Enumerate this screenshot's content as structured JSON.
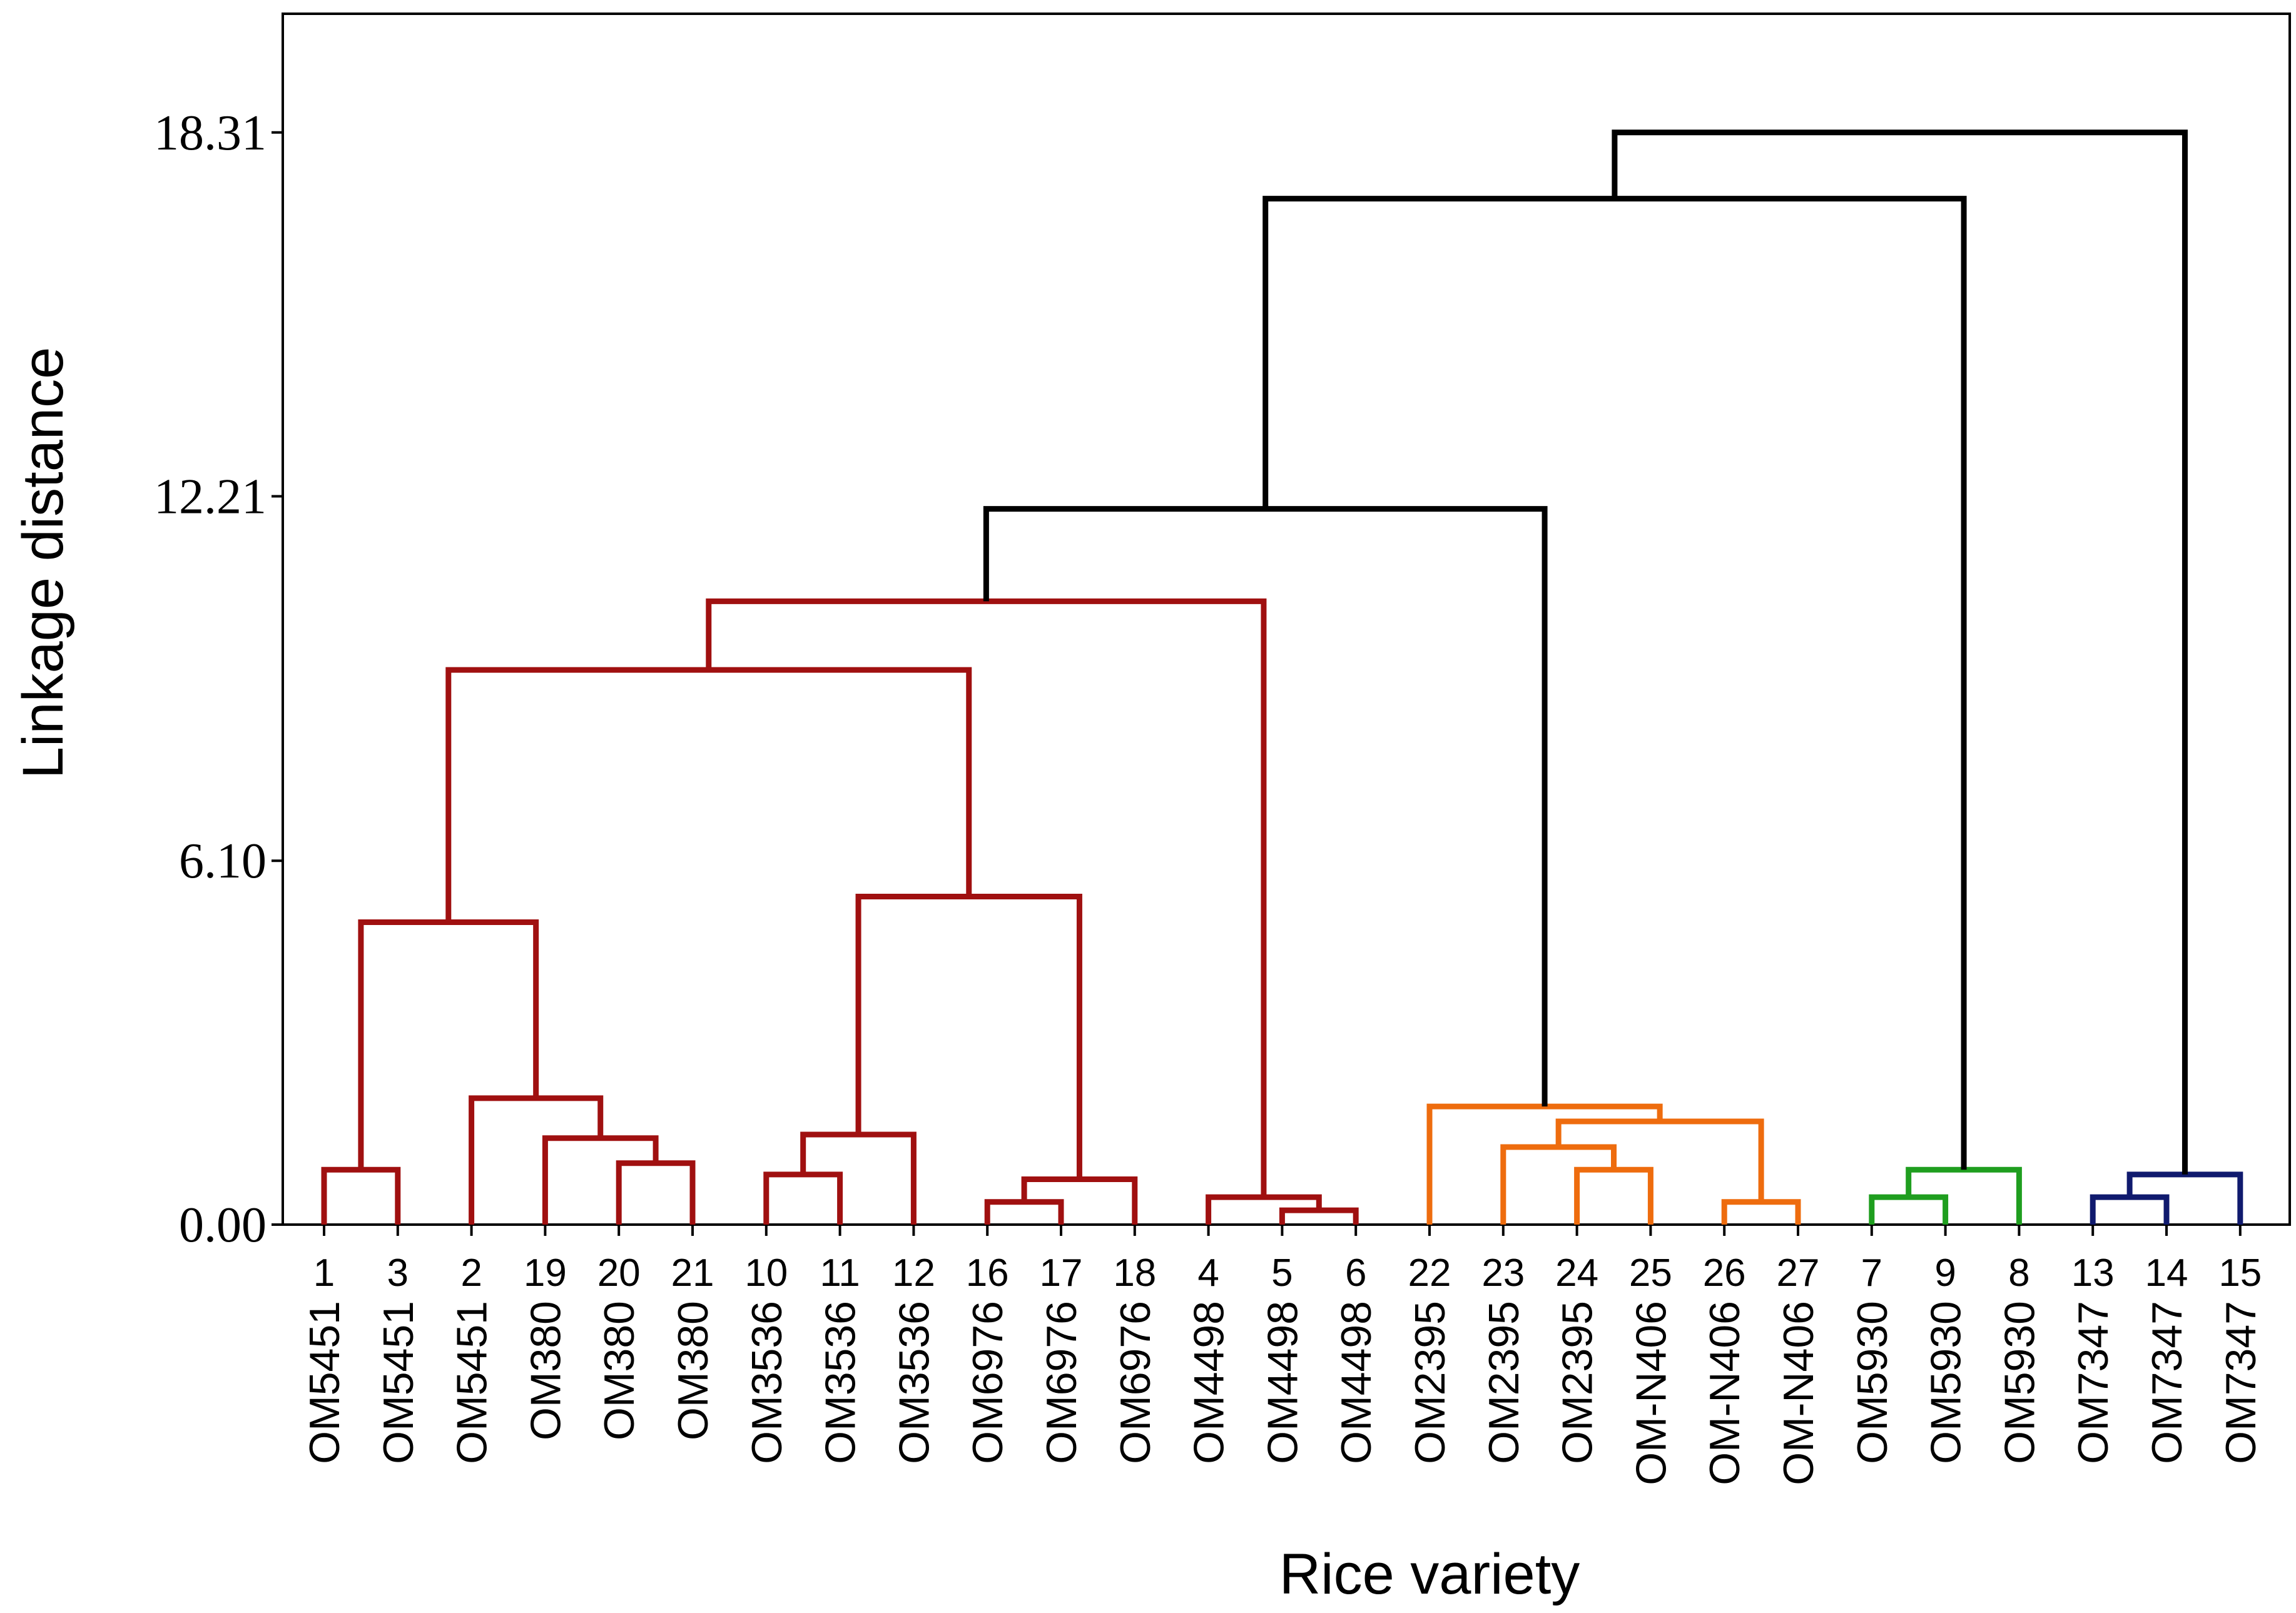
{
  "chart_data": {
    "type": "dendrogram",
    "title": "",
    "xlabel": "Rice variety",
    "ylabel": "Linkage distance",
    "ylim": [
      0,
      20.3
    ],
    "yticks": [
      0.0,
      6.1,
      12.21,
      18.31
    ],
    "ytick_labels": [
      "0.00",
      "6.10",
      "12.21",
      "18.31"
    ],
    "leaves": [
      {
        "id": "1",
        "variety": "OM5451",
        "color": "#a01010"
      },
      {
        "id": "3",
        "variety": "OM5451",
        "color": "#a01010"
      },
      {
        "id": "2",
        "variety": "OM5451",
        "color": "#a01010"
      },
      {
        "id": "19",
        "variety": "OM380",
        "color": "#a01010"
      },
      {
        "id": "20",
        "variety": "OM380",
        "color": "#a01010"
      },
      {
        "id": "21",
        "variety": "OM380",
        "color": "#a01010"
      },
      {
        "id": "10",
        "variety": "OM3536",
        "color": "#a01010"
      },
      {
        "id": "11",
        "variety": "OM3536",
        "color": "#a01010"
      },
      {
        "id": "12",
        "variety": "OM3536",
        "color": "#a01010"
      },
      {
        "id": "16",
        "variety": "OM6976",
        "color": "#a01010"
      },
      {
        "id": "17",
        "variety": "OM6976",
        "color": "#a01010"
      },
      {
        "id": "18",
        "variety": "OM6976",
        "color": "#a01010"
      },
      {
        "id": "4",
        "variety": "OM4498",
        "color": "#a01010"
      },
      {
        "id": "5",
        "variety": "OM4498",
        "color": "#a01010"
      },
      {
        "id": "6",
        "variety": "OM4498",
        "color": "#a01010"
      },
      {
        "id": "22",
        "variety": "OM2395",
        "color": "#ee6c0e"
      },
      {
        "id": "23",
        "variety": "OM2395",
        "color": "#ee6c0e"
      },
      {
        "id": "24",
        "variety": "OM2395",
        "color": "#ee6c0e"
      },
      {
        "id": "25",
        "variety": "OM-N406",
        "color": "#ee6c0e"
      },
      {
        "id": "26",
        "variety": "OM-N406",
        "color": "#ee6c0e"
      },
      {
        "id": "27",
        "variety": "OM-N406",
        "color": "#ee6c0e"
      },
      {
        "id": "7",
        "variety": "OM5930",
        "color": "#1f9e1f"
      },
      {
        "id": "9",
        "variety": "OM5930",
        "color": "#1f9e1f"
      },
      {
        "id": "8",
        "variety": "OM5930",
        "color": "#1f9e1f"
      },
      {
        "id": "13",
        "variety": "OM7347",
        "color": "#101a6e"
      },
      {
        "id": "14",
        "variety": "OM7347",
        "color": "#101a6e"
      },
      {
        "id": "15",
        "variety": "OM7347",
        "color": "#101a6e"
      }
    ],
    "merges": [
      {
        "id": "A",
        "left": 0,
        "right": 1,
        "height": 0.92,
        "color": "#a01010"
      },
      {
        "id": "B",
        "left": 4,
        "right": 5,
        "height": 1.03,
        "color": "#a01010"
      },
      {
        "id": "C",
        "left": 3,
        "right": "B",
        "height": 1.45,
        "color": "#a01010"
      },
      {
        "id": "D",
        "left": 2,
        "right": "C",
        "height": 2.12,
        "color": "#a01010"
      },
      {
        "id": "E",
        "left": "A",
        "right": "D",
        "height": 5.07,
        "color": "#a01010"
      },
      {
        "id": "F",
        "left": 6,
        "right": 7,
        "height": 0.84,
        "color": "#a01010"
      },
      {
        "id": "G",
        "left": "F",
        "right": 8,
        "height": 1.51,
        "color": "#a01010"
      },
      {
        "id": "H",
        "left": 9,
        "right": 10,
        "height": 0.38,
        "color": "#a01010"
      },
      {
        "id": "I",
        "left": "H",
        "right": 11,
        "height": 0.76,
        "color": "#a01010"
      },
      {
        "id": "J",
        "left": "G",
        "right": "I",
        "height": 5.5,
        "color": "#a01010"
      },
      {
        "id": "K",
        "left": "E",
        "right": "J",
        "height": 9.3,
        "color": "#a01010"
      },
      {
        "id": "L",
        "left": 13,
        "right": 14,
        "height": 0.24,
        "color": "#a01010"
      },
      {
        "id": "M",
        "left": 12,
        "right": "L",
        "height": 0.46,
        "color": "#a01010"
      },
      {
        "id": "N",
        "left": "K",
        "right": "M",
        "height": 10.45,
        "color": "#a01010"
      },
      {
        "id": "O",
        "left": 17,
        "right": 18,
        "height": 0.92,
        "color": "#ee6c0e"
      },
      {
        "id": "P",
        "left": 16,
        "right": "O",
        "height": 1.3,
        "color": "#ee6c0e"
      },
      {
        "id": "Q",
        "left": 19,
        "right": 20,
        "height": 0.38,
        "color": "#ee6c0e"
      },
      {
        "id": "R",
        "left": "P",
        "right": "Q",
        "height": 1.73,
        "color": "#ee6c0e"
      },
      {
        "id": "S",
        "left": 15,
        "right": "R",
        "height": 1.98,
        "color": "#ee6c0e"
      },
      {
        "id": "T",
        "left": "N",
        "right": "S",
        "height": 12.0,
        "color": "#000000"
      },
      {
        "id": "U",
        "left": 21,
        "right": 22,
        "height": 0.46,
        "color": "#1f9e1f"
      },
      {
        "id": "V",
        "left": "U",
        "right": 23,
        "height": 0.92,
        "color": "#1f9e1f"
      },
      {
        "id": "W",
        "left": "T",
        "right": "V",
        "height": 17.2,
        "color": "#000000"
      },
      {
        "id": "X",
        "left": 24,
        "right": 25,
        "height": 0.46,
        "color": "#101a6e"
      },
      {
        "id": "Y",
        "left": "X",
        "right": 26,
        "height": 0.84,
        "color": "#101a6e"
      },
      {
        "id": "Z",
        "left": "W",
        "right": "Y",
        "height": 18.31,
        "color": "#000000"
      }
    ]
  }
}
